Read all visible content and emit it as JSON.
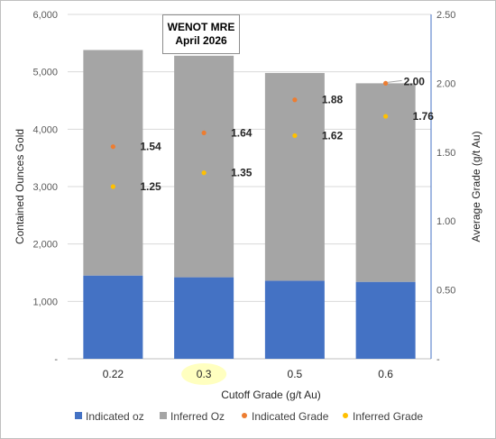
{
  "chart_data": {
    "type": "bar",
    "title": [
      "WENOT MRE",
      "April 2026"
    ],
    "categories": [
      "0.22",
      "0.3",
      "0.5",
      "0.6"
    ],
    "highlighted_category": "0.3",
    "highlight_color": "#ffffc0",
    "xlabel": "Cutoff Grade (g/t Au)",
    "ylabel": "Contained Ounces Gold",
    "y2label": "Average Grade (g/t Au)",
    "ylim": [
      0,
      6000
    ],
    "y2lim": [
      0,
      2.5
    ],
    "yticks": [
      "-",
      "1,000",
      "2,000",
      "3,000",
      "4,000",
      "5,000",
      "6,000"
    ],
    "y2ticks": [
      "-",
      "0.50",
      "1.00",
      "1.50",
      "2.00",
      "2.50"
    ],
    "grid": true,
    "legend_position": "bottom",
    "stacked": true,
    "series": [
      {
        "name": "Indicated oz",
        "kind": "bar",
        "axis": "left",
        "color": "#4472c4",
        "values": [
          1450,
          1420,
          1360,
          1340
        ]
      },
      {
        "name": "Inferred Oz",
        "kind": "bar",
        "axis": "left",
        "color": "#a5a5a5",
        "values": [
          3930,
          3860,
          3620,
          3460
        ]
      },
      {
        "name": "Indicated Grade",
        "kind": "point",
        "axis": "right",
        "color": "#ed7d31",
        "values": [
          1.54,
          1.64,
          1.88,
          2.0
        ],
        "labels": [
          "1.54",
          "1.64",
          "1.88",
          "2.00"
        ]
      },
      {
        "name": "Inferred Grade",
        "kind": "point",
        "axis": "right",
        "color": "#ffc000",
        "values": [
          1.25,
          1.35,
          1.62,
          1.76
        ],
        "labels": [
          "1.25",
          "1.35",
          "1.62",
          "1.76"
        ]
      }
    ]
  }
}
